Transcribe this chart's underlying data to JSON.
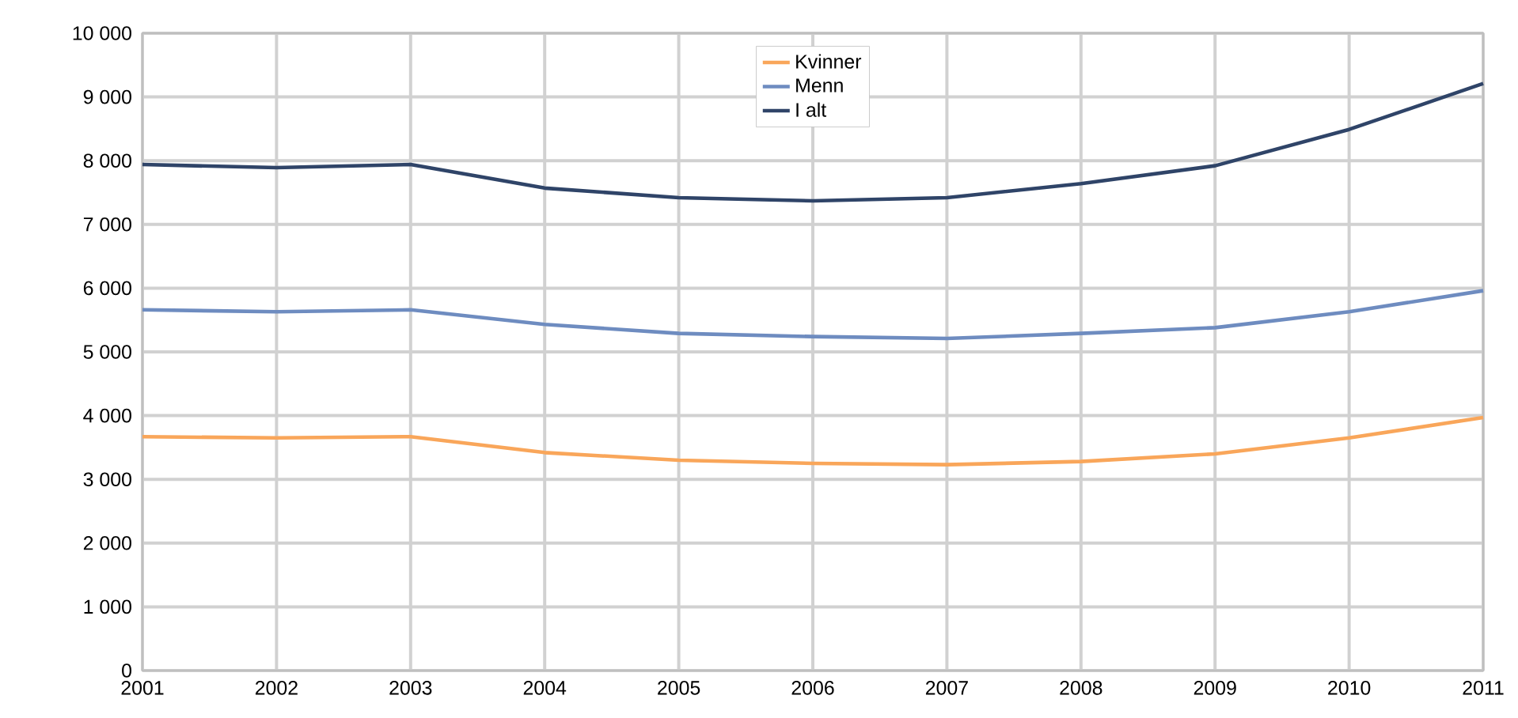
{
  "chart_data": {
    "type": "line",
    "x": [
      2001,
      2002,
      2003,
      2004,
      2005,
      2006,
      2007,
      2008,
      2009,
      2010,
      2011
    ],
    "series": [
      {
        "name": "Kvinner",
        "color": "#f9a65a",
        "values": [
          3670,
          3650,
          3670,
          3420,
          3300,
          3250,
          3230,
          3280,
          3400,
          3650,
          3970
        ]
      },
      {
        "name": "Menn",
        "color": "#6e8cc0",
        "values": [
          5660,
          5630,
          5660,
          5430,
          5290,
          5240,
          5210,
          5290,
          5380,
          5630,
          5960
        ]
      },
      {
        "name": "I alt",
        "color": "#2f4468",
        "values": [
          7940,
          7890,
          7940,
          7570,
          7420,
          7370,
          7420,
          7640,
          7920,
          8490,
          9210
        ]
      }
    ],
    "xlim": [
      2001,
      2011
    ],
    "xticks": [
      2001,
      2002,
      2003,
      2004,
      2005,
      2006,
      2007,
      2008,
      2009,
      2010,
      2011
    ],
    "ylim": [
      0,
      10000
    ],
    "yticks": [
      0,
      {
        "value": 1000,
        "label": "1 000"
      },
      {
        "value": 2000,
        "label": "2 000"
      },
      {
        "value": 3000,
        "label": "3 000"
      },
      {
        "value": 4000,
        "label": "4 000"
      },
      {
        "value": 5000,
        "label": "5 000"
      },
      {
        "value": 6000,
        "label": "6 000"
      },
      {
        "value": 7000,
        "label": "7 000"
      },
      {
        "value": 8000,
        "label": "8 000"
      },
      {
        "value": 9000,
        "label": "9 000"
      },
      {
        "value": 10000,
        "label": "10 000"
      }
    ],
    "grid": true,
    "legend": "top",
    "marker": "none",
    "line_style": "solid"
  }
}
